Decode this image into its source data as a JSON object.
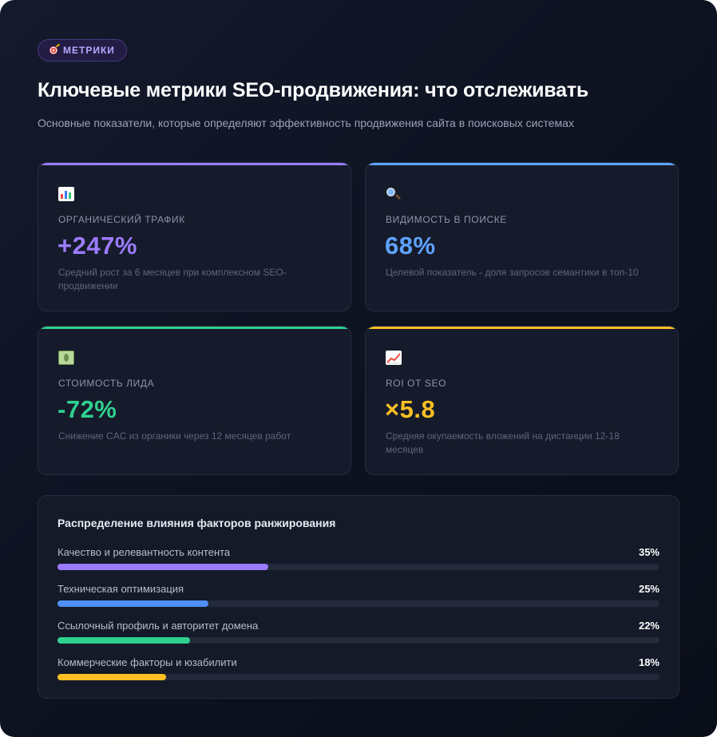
{
  "badge": {
    "label": "МЕТРИКИ",
    "icon": "target-icon"
  },
  "title": "Ключевые метрики SEO-продвижения: что отслеживать",
  "subtitle": "Основные показатели, которые определяют эффективность продвижения сайта в поисковых системах",
  "cards": [
    {
      "icon": "bar-chart-icon",
      "label": "ОРГАНИЧЕСКИЙ ТРАФИК",
      "value": "+247%",
      "description": "Средний рост за 6 месяцев при комплексном SEO-продвижении",
      "accent": "#9b7bff"
    },
    {
      "icon": "magnifier-icon",
      "label": "ВИДИМОСТЬ В ПОИСКЕ",
      "value": "68%",
      "description": "Целевой показатель - доля запросов семантики в топ-10",
      "accent": "#5ea2ff"
    },
    {
      "icon": "money-icon",
      "label": "СТОИМОСТЬ ЛИДА",
      "value": "-72%",
      "description": "Снижение CAC из органики через 12 месяцев работ",
      "accent": "#2fd08f"
    },
    {
      "icon": "trend-up-icon",
      "label": "ROI ОТ SEO",
      "value": "×5.8",
      "description": "Средняя окупаемость вложений на дистанции 12-18 месяцев",
      "accent": "#fbbf24"
    }
  ],
  "factors": {
    "title": "Распределение влияния факторов ранжирования",
    "items": [
      {
        "name": "Качество и релевантность контента",
        "value_label": "35%",
        "percent": 35,
        "color": "#9b7bff"
      },
      {
        "name": "Техническая оптимизация",
        "value_label": "25%",
        "percent": 25,
        "color": "#4f8ff7"
      },
      {
        "name": "Ссылочный профиль и авторитет домена",
        "value_label": "22%",
        "percent": 22,
        "color": "#2fd08f"
      },
      {
        "name": "Коммерческие факторы и юзабилити",
        "value_label": "18%",
        "percent": 18,
        "color": "#fbbf24"
      }
    ]
  }
}
